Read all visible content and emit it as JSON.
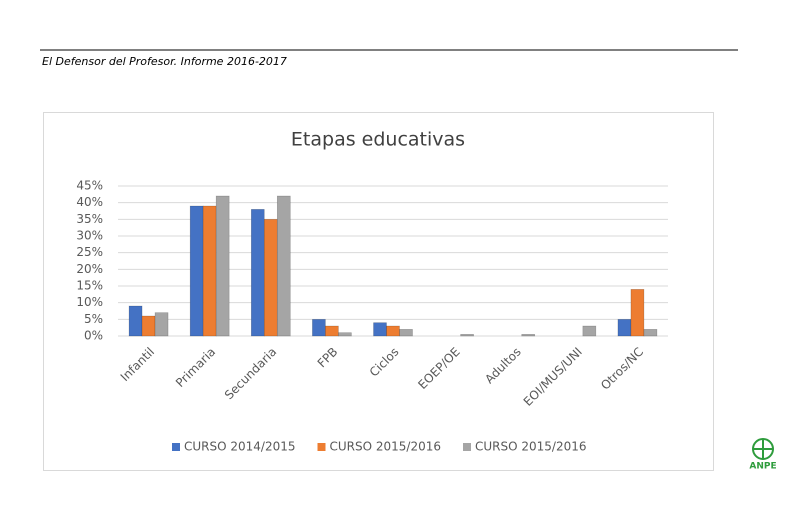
{
  "header": {
    "title": "El Defensor del Profesor. Informe 2016-2017"
  },
  "logo": "ANPE",
  "chart_data": {
    "type": "bar",
    "title": "Etapas educativas",
    "categories": [
      "Infantil",
      "Primaria",
      "Secundaria",
      "FPB",
      "Ciclos",
      "EOEP/OE",
      "Adultos",
      "EOI/MUS/UNI",
      "Otros/NC"
    ],
    "series": [
      {
        "name": "CURSO 2014/2015",
        "color": "#4472c4",
        "values": [
          9,
          39,
          38,
          5,
          4,
          0,
          0,
          0,
          5
        ]
      },
      {
        "name": "CURSO 2015/2016",
        "color": "#ed7d31",
        "values": [
          6,
          39,
          35,
          3,
          3,
          0,
          0,
          0,
          14
        ]
      },
      {
        "name": "CURSO 2015/2016",
        "color": "#a5a5a5",
        "values": [
          7,
          42,
          42,
          1,
          2,
          0.5,
          0.5,
          3,
          2
        ]
      }
    ],
    "ylim": [
      0,
      45
    ],
    "yticks": [
      {
        "value": 0,
        "label": "0%"
      },
      {
        "value": 5,
        "label": "5%"
      },
      {
        "value": 10,
        "label": "10%"
      },
      {
        "value": 15,
        "label": "15%"
      },
      {
        "value": 20,
        "label": "20%"
      },
      {
        "value": 25,
        "label": "25%"
      },
      {
        "value": 30,
        "label": "30%"
      },
      {
        "value": 35,
        "label": "35%"
      },
      {
        "value": 40,
        "label": "40%"
      },
      {
        "value": 45,
        "label": "45%"
      }
    ],
    "grid": true,
    "legend": "bottom"
  }
}
